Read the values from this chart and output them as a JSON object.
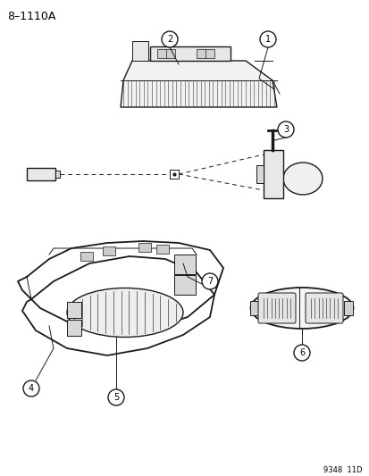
{
  "title": "8–1110A",
  "footer": "9348  11D",
  "bg_color": "#ffffff",
  "text_color": "#000000",
  "line_color": "#1a1a1a",
  "fig_width": 4.14,
  "fig_height": 5.33,
  "dpi": 100
}
